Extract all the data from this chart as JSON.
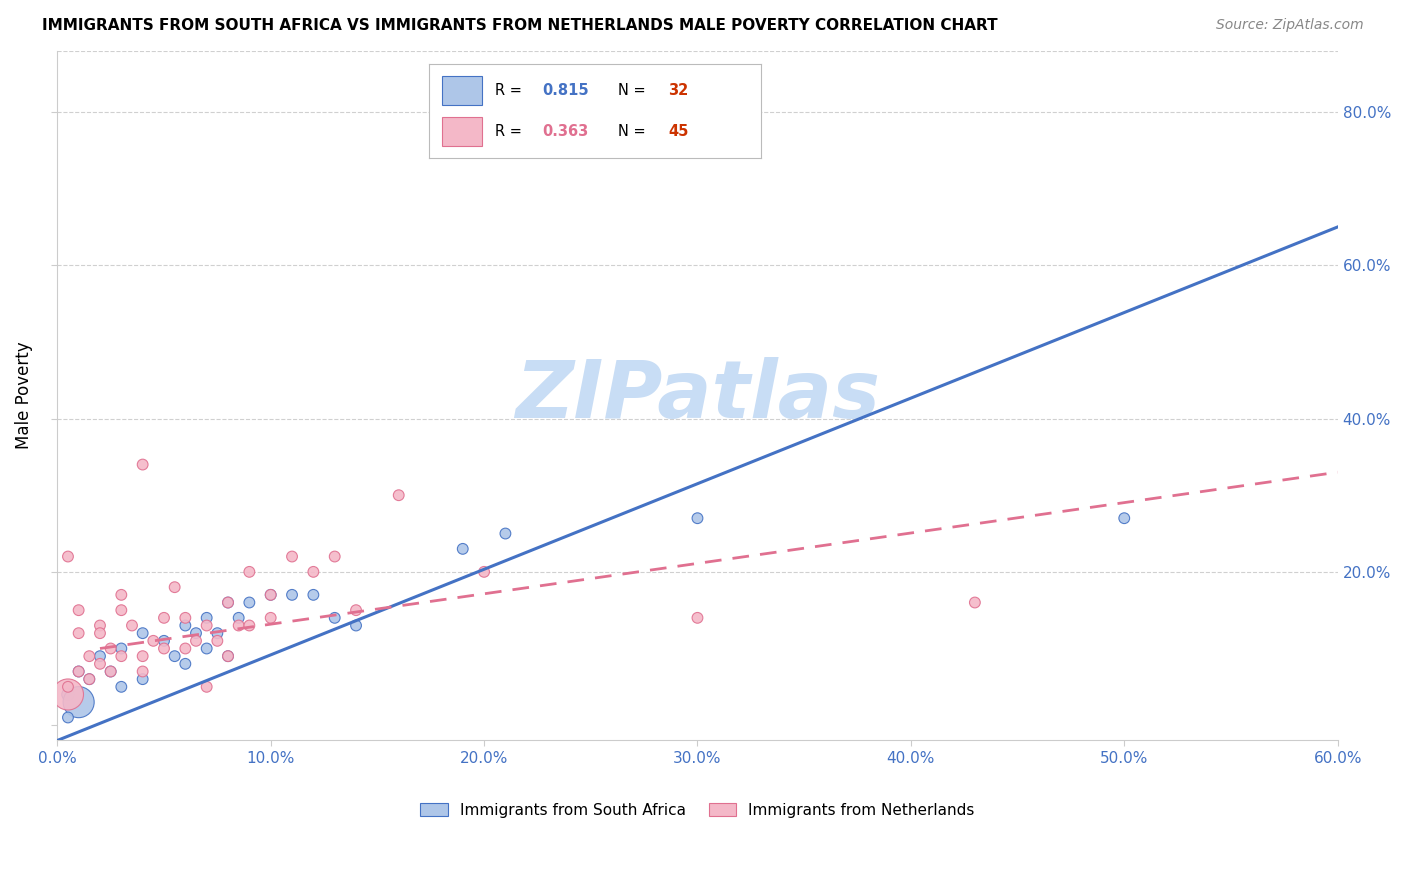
{
  "title": "IMMIGRANTS FROM SOUTH AFRICA VS IMMIGRANTS FROM NETHERLANDS MALE POVERTY CORRELATION CHART",
  "source": "Source: ZipAtlas.com",
  "xlabel": "",
  "ylabel": "Male Poverty",
  "xlim": [
    0.0,
    0.6
  ],
  "ylim": [
    -0.02,
    0.88
  ],
  "yticks_left": [
    0.0,
    0.2,
    0.4,
    0.6,
    0.8
  ],
  "yticks_right": [
    0.2,
    0.4,
    0.6,
    0.8
  ],
  "xticks": [
    0.0,
    0.1,
    0.2,
    0.3,
    0.4,
    0.5,
    0.6
  ],
  "blue_R": 0.815,
  "blue_N": 32,
  "pink_R": 0.363,
  "pink_N": 45,
  "blue_color": "#aec6e8",
  "pink_color": "#f4b8c8",
  "blue_line_color": "#4472c4",
  "pink_line_color": "#e07090",
  "red_color": "#cc3300",
  "watermark_color": "#c8ddf5",
  "watermark": "ZIPatlas",
  "blue_scatter_x": [
    0.005,
    0.01,
    0.015,
    0.02,
    0.025,
    0.03,
    0.03,
    0.04,
    0.04,
    0.05,
    0.055,
    0.06,
    0.06,
    0.065,
    0.07,
    0.07,
    0.075,
    0.08,
    0.08,
    0.085,
    0.09,
    0.1,
    0.11,
    0.12,
    0.13,
    0.14,
    0.19,
    0.21,
    0.3,
    0.01,
    0.5,
    0.005
  ],
  "blue_scatter_y": [
    0.04,
    0.07,
    0.06,
    0.09,
    0.07,
    0.1,
    0.05,
    0.12,
    0.06,
    0.11,
    0.09,
    0.13,
    0.08,
    0.12,
    0.14,
    0.1,
    0.12,
    0.16,
    0.09,
    0.14,
    0.16,
    0.17,
    0.17,
    0.17,
    0.14,
    0.13,
    0.23,
    0.25,
    0.27,
    0.03,
    0.27,
    0.01
  ],
  "blue_scatter_size": [
    80,
    60,
    60,
    60,
    60,
    60,
    60,
    60,
    60,
    60,
    60,
    60,
    60,
    60,
    60,
    60,
    60,
    60,
    60,
    60,
    60,
    60,
    60,
    60,
    60,
    60,
    60,
    60,
    60,
    500,
    60,
    60
  ],
  "pink_scatter_x": [
    0.005,
    0.005,
    0.01,
    0.01,
    0.015,
    0.02,
    0.02,
    0.025,
    0.03,
    0.03,
    0.035,
    0.04,
    0.04,
    0.045,
    0.05,
    0.055,
    0.06,
    0.065,
    0.07,
    0.075,
    0.08,
    0.085,
    0.09,
    0.1,
    0.11,
    0.12,
    0.13,
    0.14,
    0.16,
    0.2,
    0.43,
    0.005,
    0.01,
    0.015,
    0.02,
    0.025,
    0.03,
    0.04,
    0.05,
    0.06,
    0.07,
    0.08,
    0.09,
    0.1,
    0.3
  ],
  "pink_scatter_y": [
    0.04,
    0.22,
    0.07,
    0.15,
    0.06,
    0.08,
    0.13,
    0.07,
    0.09,
    0.15,
    0.13,
    0.09,
    0.34,
    0.11,
    0.14,
    0.18,
    0.14,
    0.11,
    0.13,
    0.11,
    0.16,
    0.13,
    0.2,
    0.17,
    0.22,
    0.2,
    0.22,
    0.15,
    0.3,
    0.2,
    0.16,
    0.05,
    0.12,
    0.09,
    0.12,
    0.1,
    0.17,
    0.07,
    0.1,
    0.1,
    0.05,
    0.09,
    0.13,
    0.14,
    0.14
  ],
  "pink_scatter_size": [
    500,
    60,
    60,
    60,
    60,
    60,
    60,
    60,
    60,
    60,
    60,
    60,
    60,
    60,
    60,
    60,
    60,
    60,
    60,
    60,
    60,
    60,
    60,
    60,
    60,
    60,
    60,
    60,
    60,
    60,
    60,
    60,
    60,
    60,
    60,
    60,
    60,
    60,
    60,
    60,
    60,
    60,
    60,
    60,
    60
  ],
  "blue_line_x": [
    0.0,
    0.6
  ],
  "blue_line_y": [
    -0.02,
    0.65
  ],
  "pink_line_x": [
    0.02,
    0.6
  ],
  "pink_line_y": [
    0.1,
    0.33
  ],
  "legend_blue_label": "R = 0.815   N = 32",
  "legend_pink_label": "R = 0.363   N = 45",
  "bottom_legend_blue": "Immigrants from South Africa",
  "bottom_legend_pink": "Immigrants from Netherlands"
}
